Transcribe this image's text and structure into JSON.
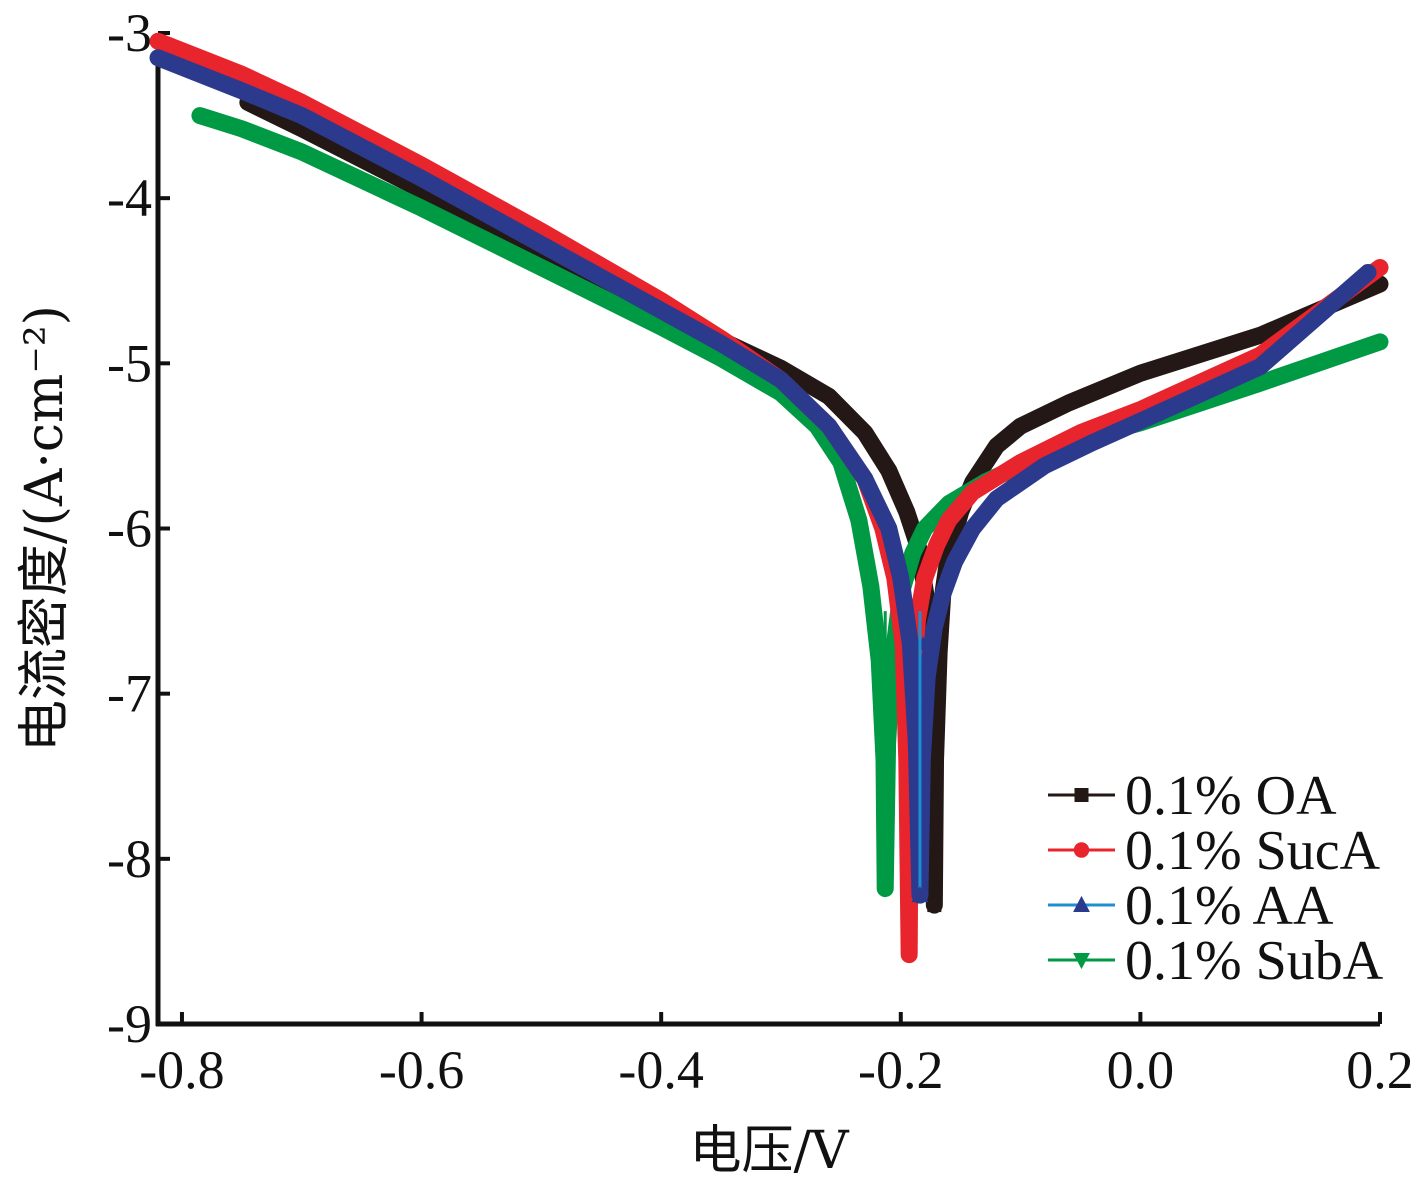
{
  "chart_data": {
    "type": "line",
    "title": "",
    "xlabel": "电压/V",
    "ylabel": "电流密度/(A·cm⁻²)",
    "xlim": [
      -0.82,
      0.2
    ],
    "ylim": [
      -9,
      -3
    ],
    "x_ticks": [
      "-0.8",
      "-0.6",
      "-0.4",
      "-0.2",
      "0.0",
      "0.2"
    ],
    "x_tick_values": [
      -0.8,
      -0.6,
      -0.4,
      -0.2,
      0.0,
      0.2
    ],
    "y_ticks": [
      "-3",
      "-4",
      "-5",
      "-6",
      "-7",
      "-8",
      "-9"
    ],
    "y_tick_values": [
      -3,
      -4,
      -5,
      -6,
      -7,
      -8,
      -9
    ],
    "grid": false,
    "legend_position": "bottom-right",
    "series": [
      {
        "name": "0.1% OA",
        "color": "#231815",
        "marker": "square",
        "ecorr": -0.172,
        "min_y": -8.28,
        "points": [
          [
            -0.745,
            -3.42
          ],
          [
            -0.7,
            -3.58
          ],
          [
            -0.6,
            -3.95
          ],
          [
            -0.5,
            -4.32
          ],
          [
            -0.4,
            -4.68
          ],
          [
            -0.35,
            -4.86
          ],
          [
            -0.3,
            -5.03
          ],
          [
            -0.26,
            -5.2
          ],
          [
            -0.23,
            -5.42
          ],
          [
            -0.21,
            -5.65
          ],
          [
            -0.195,
            -5.9
          ],
          [
            -0.185,
            -6.12
          ],
          [
            -0.177,
            -6.5
          ],
          [
            -0.173,
            -7.2
          ],
          [
            -0.172,
            -8.28
          ],
          [
            -0.171,
            -7.4
          ],
          [
            -0.168,
            -6.75
          ],
          [
            -0.165,
            -6.4
          ],
          [
            -0.16,
            -6.15
          ],
          [
            -0.15,
            -5.9
          ],
          [
            -0.14,
            -5.72
          ],
          [
            -0.12,
            -5.5
          ],
          [
            -0.1,
            -5.38
          ],
          [
            -0.06,
            -5.24
          ],
          [
            0.0,
            -5.06
          ],
          [
            0.1,
            -4.83
          ],
          [
            0.2,
            -4.52
          ]
        ]
      },
      {
        "name": "0.1% SucA",
        "color": "#e8242d",
        "marker": "circle",
        "ecorr": -0.193,
        "min_y": -8.58,
        "points": [
          [
            -0.82,
            -3.05
          ],
          [
            -0.75,
            -3.25
          ],
          [
            -0.7,
            -3.42
          ],
          [
            -0.6,
            -3.8
          ],
          [
            -0.5,
            -4.2
          ],
          [
            -0.4,
            -4.62
          ],
          [
            -0.35,
            -4.85
          ],
          [
            -0.3,
            -5.1
          ],
          [
            -0.26,
            -5.38
          ],
          [
            -0.23,
            -5.7
          ],
          [
            -0.215,
            -6.0
          ],
          [
            -0.205,
            -6.3
          ],
          [
            -0.198,
            -6.7
          ],
          [
            -0.195,
            -7.4
          ],
          [
            -0.193,
            -8.58
          ],
          [
            -0.192,
            -7.5
          ],
          [
            -0.19,
            -6.95
          ],
          [
            -0.186,
            -6.55
          ],
          [
            -0.18,
            -6.3
          ],
          [
            -0.17,
            -6.1
          ],
          [
            -0.16,
            -5.95
          ],
          [
            -0.14,
            -5.78
          ],
          [
            -0.1,
            -5.6
          ],
          [
            -0.05,
            -5.42
          ],
          [
            0.0,
            -5.28
          ],
          [
            0.1,
            -4.95
          ],
          [
            0.2,
            -4.42
          ]
        ]
      },
      {
        "name": "0.1% AA",
        "color": "#2b3a8c",
        "fill": "#1c8fd1",
        "marker": "triangle",
        "ecorr": -0.184,
        "min_y": -8.22,
        "points": [
          [
            -0.82,
            -3.15
          ],
          [
            -0.75,
            -3.35
          ],
          [
            -0.7,
            -3.5
          ],
          [
            -0.6,
            -3.88
          ],
          [
            -0.5,
            -4.28
          ],
          [
            -0.4,
            -4.68
          ],
          [
            -0.35,
            -4.88
          ],
          [
            -0.3,
            -5.1
          ],
          [
            -0.26,
            -5.38
          ],
          [
            -0.23,
            -5.7
          ],
          [
            -0.21,
            -6.0
          ],
          [
            -0.2,
            -6.3
          ],
          [
            -0.192,
            -6.7
          ],
          [
            -0.187,
            -7.3
          ],
          [
            -0.184,
            -8.22
          ],
          [
            -0.182,
            -7.4
          ],
          [
            -0.178,
            -6.9
          ],
          [
            -0.172,
            -6.6
          ],
          [
            -0.165,
            -6.4
          ],
          [
            -0.155,
            -6.2
          ],
          [
            -0.14,
            -6.0
          ],
          [
            -0.12,
            -5.82
          ],
          [
            -0.08,
            -5.62
          ],
          [
            -0.04,
            -5.48
          ],
          [
            0.0,
            -5.35
          ],
          [
            0.1,
            -5.02
          ],
          [
            0.19,
            -4.45
          ]
        ]
      },
      {
        "name": "0.1% SubA",
        "color": "#009944",
        "marker": "triangle-down",
        "ecorr": -0.213,
        "min_y": -8.18,
        "points": [
          [
            -0.785,
            -3.5
          ],
          [
            -0.75,
            -3.58
          ],
          [
            -0.7,
            -3.72
          ],
          [
            -0.6,
            -4.06
          ],
          [
            -0.5,
            -4.42
          ],
          [
            -0.4,
            -4.78
          ],
          [
            -0.35,
            -4.97
          ],
          [
            -0.3,
            -5.18
          ],
          [
            -0.27,
            -5.38
          ],
          [
            -0.25,
            -5.6
          ],
          [
            -0.235,
            -5.95
          ],
          [
            -0.225,
            -6.35
          ],
          [
            -0.218,
            -6.8
          ],
          [
            -0.214,
            -7.4
          ],
          [
            -0.213,
            -8.18
          ],
          [
            -0.211,
            -7.3
          ],
          [
            -0.207,
            -6.8
          ],
          [
            -0.2,
            -6.4
          ],
          [
            -0.19,
            -6.15
          ],
          [
            -0.18,
            -6.0
          ],
          [
            -0.16,
            -5.85
          ],
          [
            -0.13,
            -5.72
          ],
          [
            -0.08,
            -5.55
          ],
          [
            -0.02,
            -5.4
          ],
          [
            0.0,
            -5.36
          ],
          [
            0.1,
            -5.12
          ],
          [
            0.2,
            -4.87
          ]
        ]
      }
    ]
  }
}
